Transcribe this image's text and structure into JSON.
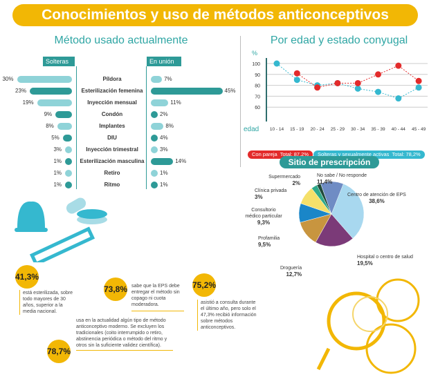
{
  "title": "Conocimientos y uso de métodos anticonceptivos",
  "methods": {
    "title": "Método usado actualmente",
    "left_header": "Solteras",
    "right_header": "En unión",
    "items": [
      {
        "label": "Píldora",
        "solteras": "30%",
        "union": "7%",
        "s": 30,
        "u": 7
      },
      {
        "label": "Esterilización femenina",
        "solteras": "23%",
        "union": "45%",
        "s": 23,
        "u": 45
      },
      {
        "label": "Inyección mensual",
        "solteras": "19%",
        "union": "11%",
        "s": 19,
        "u": 11
      },
      {
        "label": "Condón",
        "solteras": "9%",
        "union": "2%",
        "s": 9,
        "u": 2
      },
      {
        "label": "Implantes",
        "solteras": "8%",
        "union": "8%",
        "s": 8,
        "u": 8
      },
      {
        "label": "DIU",
        "solteras": "5%",
        "union": "4%",
        "s": 5,
        "u": 4
      },
      {
        "label": "Inyección trimestral",
        "solteras": "3%",
        "union": "3%",
        "s": 3,
        "u": 3
      },
      {
        "label": "Esterilización masculina",
        "solteras": "1%",
        "union": "14%",
        "s": 1,
        "u": 14
      },
      {
        "label": "Retiro",
        "solteras": "1%",
        "union": "1%",
        "s": 1,
        "u": 1
      },
      {
        "label": "Ritmo",
        "solteras": "1%",
        "union": "1%",
        "s": 1,
        "u": 1
      }
    ],
    "colors": [
      "#8fd3d8",
      "#2e9a97"
    ]
  },
  "chart_data": [
    {
      "type": "line",
      "title": "Por edad y estado conyugal",
      "ylabel": "%",
      "xlabel": "edad",
      "ylim": [
        55,
        105
      ],
      "yticks": [
        "100",
        "90",
        "80",
        "70",
        "60"
      ],
      "categories": [
        "10 - 14",
        "15 - 19",
        "20 - 24",
        "25 - 29",
        "30 - 34",
        "35 - 39",
        "40 - 44",
        "45 - 49"
      ],
      "series": [
        {
          "name": "Con pareja",
          "total": "Total: 87,2%",
          "color": "#e32b2b",
          "values": [
            null,
            91,
            78,
            82,
            82,
            90,
            98,
            84
          ]
        },
        {
          "name": "Solteras y sexualmente activas",
          "total": "Total: 78,2%",
          "color": "#35b8cf",
          "values": [
            100,
            85,
            80,
            82,
            77,
            74,
            68,
            78
          ]
        }
      ]
    },
    {
      "type": "pie",
      "title": "Sitio de prescripción",
      "slices": [
        {
          "label": "Centro de atención de EPS",
          "value": 38.6,
          "text": "38,6%",
          "color": "#a8d8ef"
        },
        {
          "label": "Hospital o centro de salud",
          "value": 19.5,
          "text": "19,5%",
          "color": "#7b3a78"
        },
        {
          "label": "Droguería",
          "value": 12.7,
          "text": "12,7%",
          "color": "#c8953f"
        },
        {
          "label": "Profamilia",
          "value": 9.5,
          "text": "9,5%",
          "color": "#1a86c8"
        },
        {
          "label": "Consultorio médico particular",
          "value": 9.3,
          "text": "9,3%",
          "color": "#f5e06a"
        },
        {
          "label": "Clínica privada",
          "value": 3,
          "text": "3%",
          "color": "#2fa98a"
        },
        {
          "label": "Supermercado",
          "value": 2,
          "text": "2%",
          "color": "#1f4a3a"
        },
        {
          "label": "No sabe / No responde",
          "value": 11.4,
          "text": "11,4%",
          "color": "#6f8cc4"
        }
      ]
    }
  ],
  "facts": [
    {
      "value": "41,3%",
      "text": "está esterilizada, sobre todo mayores de 30 años, superior a la media nacional."
    },
    {
      "value": "73,8%",
      "text": "sabe que la EPS debe entregar el método sin copago ni cuota moderadora."
    },
    {
      "value": "75,2%",
      "text": "asistió a consulta durante el último año, pero solo el 47,3% recibió información sobre métodos anticonceptivos."
    },
    {
      "value": "78,7%",
      "text": "usa en la actualidad algún tipo de método anticonceptivo moderno. Se excluyen los tradicionales (coito interrumpido o retiro, abstinencia periódica o método del ritmo y otros sin la suficiente validez científica)."
    }
  ]
}
